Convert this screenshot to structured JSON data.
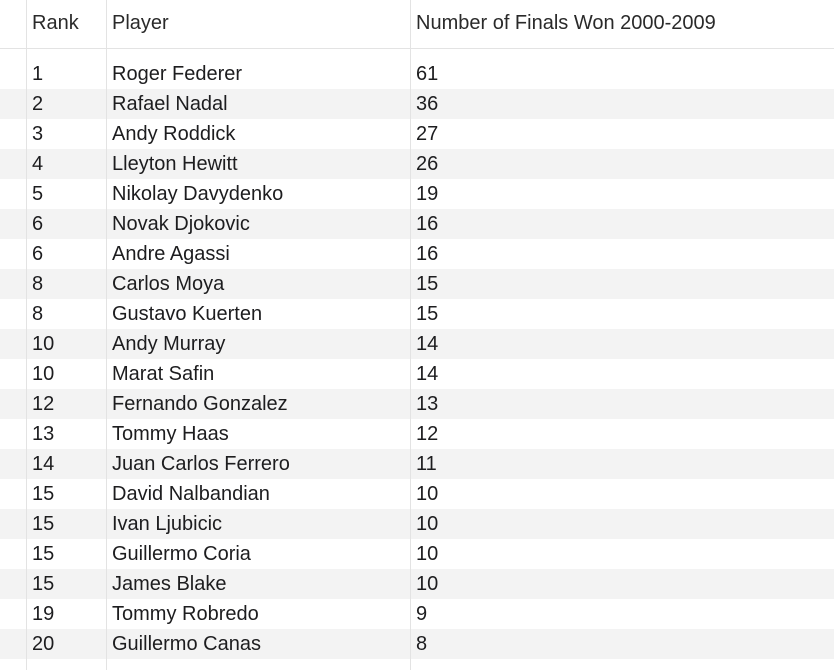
{
  "table": {
    "columns": [
      "Rank",
      "Player",
      "Number of Finals Won 2000-2009"
    ],
    "rows": [
      {
        "rank": "1",
        "player": "Roger Federer",
        "finals": "61"
      },
      {
        "rank": "2",
        "player": "Rafael Nadal",
        "finals": "36"
      },
      {
        "rank": "3",
        "player": "Andy Roddick",
        "finals": "27"
      },
      {
        "rank": "4",
        "player": "Lleyton Hewitt",
        "finals": "26"
      },
      {
        "rank": "5",
        "player": "Nikolay Davydenko",
        "finals": "19"
      },
      {
        "rank": "6",
        "player": "Novak Djokovic",
        "finals": "16"
      },
      {
        "rank": "6",
        "player": "Andre Agassi",
        "finals": "16"
      },
      {
        "rank": "8",
        "player": "Carlos Moya",
        "finals": "15"
      },
      {
        "rank": "8",
        "player": "Gustavo Kuerten",
        "finals": "15"
      },
      {
        "rank": "10",
        "player": "Andy Murray",
        "finals": "14"
      },
      {
        "rank": "10",
        "player": "Marat Safin",
        "finals": "14"
      },
      {
        "rank": "12",
        "player": "Fernando Gonzalez",
        "finals": "13"
      },
      {
        "rank": "13",
        "player": "Tommy Haas",
        "finals": "12"
      },
      {
        "rank": "14",
        "player": "Juan Carlos Ferrero",
        "finals": "11"
      },
      {
        "rank": "15",
        "player": "David Nalbandian",
        "finals": "10"
      },
      {
        "rank": "15",
        "player": "Ivan Ljubicic",
        "finals": "10"
      },
      {
        "rank": "15",
        "player": "Guillermo Coria",
        "finals": "10"
      },
      {
        "rank": "15",
        "player": "James Blake",
        "finals": "10"
      },
      {
        "rank": "19",
        "player": "Tommy Robredo",
        "finals": "9"
      },
      {
        "rank": "20",
        "player": "Guillermo Canas",
        "finals": "8"
      }
    ]
  },
  "colors": {
    "grid_line": "#e3e3e3",
    "alt_row": "#f3f3f3",
    "text": "#1d1d1f"
  }
}
